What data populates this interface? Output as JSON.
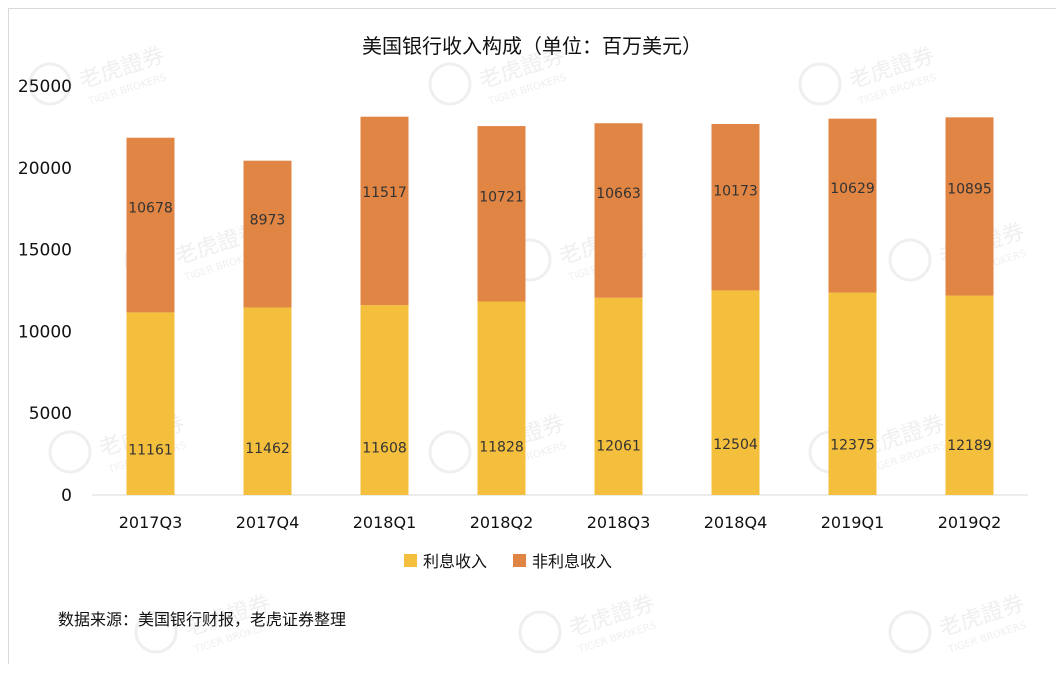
{
  "chart_data": {
    "type": "bar",
    "stacked": true,
    "title": "美国银行收入构成（单位：百万美元）",
    "categories": [
      "2017Q3",
      "2017Q4",
      "2018Q1",
      "2018Q2",
      "2018Q3",
      "2018Q4",
      "2019Q1",
      "2019Q2"
    ],
    "series": [
      {
        "name": "利息收入",
        "color": "#F5BF3E",
        "values": [
          11161,
          11462,
          11608,
          11828,
          12061,
          12504,
          12375,
          12189
        ]
      },
      {
        "name": "非利息收入",
        "color": "#E08543",
        "values": [
          10678,
          8973,
          11517,
          10721,
          10663,
          10173,
          10629,
          10895
        ]
      }
    ],
    "ylim": [
      0,
      25000
    ],
    "yticks": [
      0,
      5000,
      10000,
      15000,
      20000,
      25000
    ],
    "xlabel": "",
    "ylabel": "",
    "grid": false,
    "legend_position": "bottom"
  },
  "source_note": "数据来源：美国银行财报，老虎证券整理",
  "watermark": {
    "logo_text": "老虎證券",
    "sub_text": "TIGER BROKERS"
  }
}
